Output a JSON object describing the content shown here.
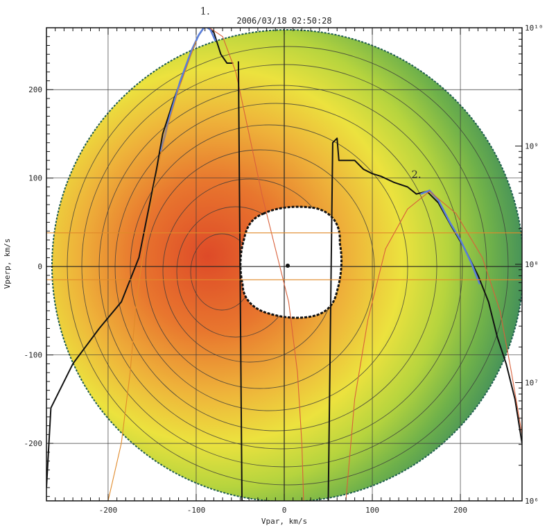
{
  "chart_data": {
    "type": "heatmap",
    "title": "2006/03/18 02:50:28",
    "xlabel": "Vpar, km/s",
    "ylabel": "Vperp, km/s",
    "xlim": [
      -270,
      270
    ],
    "ylim": [
      -265,
      270
    ],
    "x_ticks": [
      -200,
      -100,
      0,
      100,
      200
    ],
    "y_ticks": [
      -200,
      -100,
      0,
      100,
      200
    ],
    "colorbar_ticks": [
      {
        "label": "10¹⁰",
        "value": 10
      },
      {
        "label": "10⁹",
        "value": 9
      },
      {
        "label": "10⁸",
        "value": 8
      },
      {
        "label": "10⁷",
        "value": 7
      },
      {
        "label": "10⁶",
        "value": 6
      }
    ],
    "grid": true,
    "colors": {
      "outer": "#2e7d5e",
      "mid": "#e8e23c",
      "inner": "#e2582c",
      "line_black": "#111111",
      "line_blue": "#5b7fd9",
      "line_red": "#d9603a",
      "line_orange": "#e08a2a"
    },
    "annotations": [
      {
        "text": "1.",
        "x": -90,
        "y": 285
      },
      {
        "text": "2.",
        "x": 150,
        "y": 100
      }
    ],
    "series": [
      {
        "color": "#111111",
        "points": [
          [
            -270,
            -250
          ],
          [
            -265,
            -160
          ],
          [
            -240,
            -110
          ],
          [
            -210,
            -70
          ],
          [
            -185,
            -40
          ],
          [
            -165,
            10
          ],
          [
            -155,
            60
          ],
          [
            -145,
            110
          ],
          [
            -138,
            150
          ],
          [
            -125,
            190
          ],
          [
            -110,
            230
          ],
          [
            -98,
            260
          ],
          [
            -90,
            272
          ],
          [
            -80,
            265
          ],
          [
            -72,
            240
          ],
          [
            -65,
            230
          ],
          [
            -58,
            230
          ]
        ]
      },
      {
        "color": "#5b7fd9",
        "points": [
          [
            -140,
            130
          ],
          [
            -130,
            170
          ],
          [
            -118,
            210
          ],
          [
            -105,
            245
          ],
          [
            -97,
            262
          ],
          [
            -90,
            272
          ],
          [
            -84,
            268
          ],
          [
            -78,
            255
          ]
        ]
      },
      {
        "color": "#d9603a",
        "points": [
          [
            -85,
            270
          ],
          [
            -70,
            260
          ],
          [
            -55,
            220
          ],
          [
            -40,
            150
          ],
          [
            -25,
            80
          ],
          [
            -10,
            20
          ],
          [
            5,
            -40
          ],
          [
            15,
            -120
          ],
          [
            20,
            -200
          ],
          [
            22,
            -265
          ]
        ]
      },
      {
        "color": "#e08a2a",
        "points": [
          [
            -200,
            -265
          ],
          [
            -185,
            -200
          ],
          [
            -175,
            -120
          ],
          [
            -168,
            -40
          ],
          [
            -158,
            30
          ],
          [
            -148,
            90
          ],
          [
            -135,
            150
          ],
          [
            -120,
            200
          ],
          [
            -100,
            255
          ]
        ]
      },
      {
        "color": "#111111",
        "points": [
          [
            -52,
            232
          ],
          [
            -48,
            -265
          ],
          [
            -45,
            -265
          ]
        ]
      },
      {
        "color": "#111111",
        "points": [
          [
            50,
            -265
          ],
          [
            55,
            140
          ],
          [
            60,
            145
          ],
          [
            62,
            120
          ],
          [
            80,
            120
          ],
          [
            90,
            110
          ],
          [
            100,
            105
          ],
          [
            110,
            102
          ],
          [
            125,
            95
          ],
          [
            140,
            90
          ],
          [
            150,
            82
          ],
          [
            162,
            85
          ],
          [
            175,
            72
          ],
          [
            190,
            45
          ],
          [
            205,
            20
          ],
          [
            220,
            -10
          ],
          [
            232,
            -40
          ],
          [
            242,
            -80
          ],
          [
            252,
            -110
          ],
          [
            262,
            -150
          ],
          [
            270,
            -200
          ]
        ]
      },
      {
        "color": "#5b7fd9",
        "points": [
          [
            155,
            82
          ],
          [
            165,
            86
          ],
          [
            175,
            75
          ],
          [
            188,
            50
          ],
          [
            200,
            30
          ],
          [
            212,
            5
          ],
          [
            222,
            -20
          ]
        ]
      },
      {
        "color": "#d9603a",
        "points": [
          [
            70,
            -265
          ],
          [
            80,
            -150
          ],
          [
            95,
            -60
          ],
          [
            115,
            20
          ],
          [
            140,
            65
          ],
          [
            165,
            85
          ],
          [
            195,
            60
          ],
          [
            225,
            10
          ],
          [
            245,
            -50
          ],
          [
            258,
            -120
          ],
          [
            270,
            -190
          ]
        ]
      },
      {
        "color": "#e08a2a",
        "points": [
          [
            -270,
            38
          ],
          [
            270,
            38
          ]
        ]
      },
      {
        "color": "#e08a2a",
        "points": [
          [
            -270,
            -15
          ],
          [
            270,
            -15
          ]
        ]
      }
    ]
  }
}
